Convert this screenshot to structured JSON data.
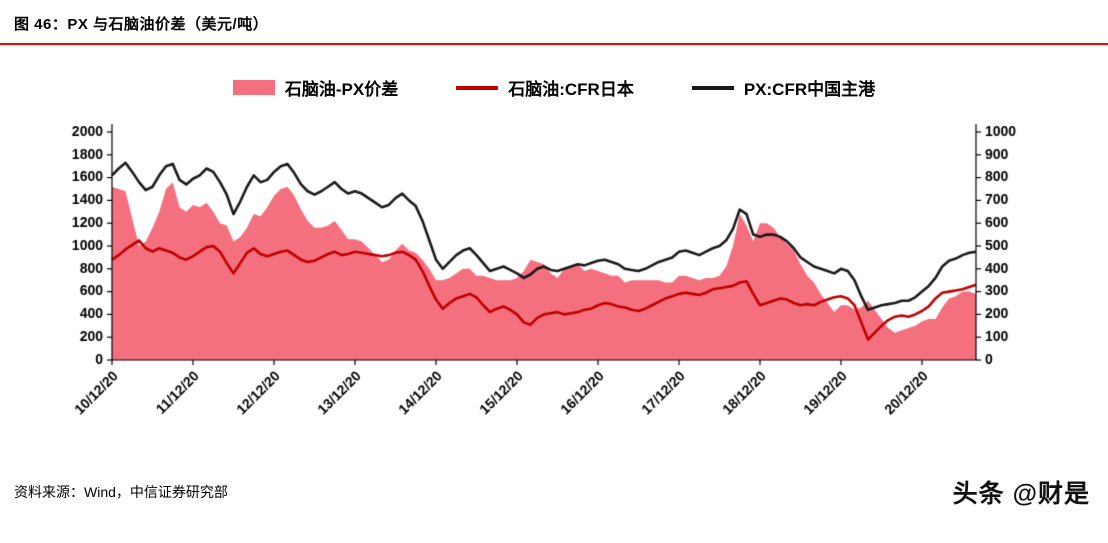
{
  "page": {
    "title": "图 46：PX 与石脑油价差（美元/吨）",
    "source": "资料来源：Wind，中信证券研究部",
    "watermark": "头条 @财是",
    "colors": {
      "accent_red": "#ff0000"
    }
  },
  "chart_data": {
    "type": "line",
    "title": "图 46：PX 与石脑油价差（美元/吨）",
    "xlabel": "",
    "ylabel": "美元/吨",
    "grid": false,
    "legend_position": "top",
    "left_axis": {
      "min": 0,
      "max": 2000,
      "step": 200
    },
    "right_axis": {
      "min": 0,
      "max": 1000,
      "step": 100
    },
    "x_tick_labels": [
      "10/12/20",
      "11/12/20",
      "12/12/20",
      "13/12/20",
      "14/12/20",
      "15/12/20",
      "16/12/20",
      "17/12/20",
      "18/12/20",
      "19/12/20",
      "20/12/20"
    ],
    "x_tick_indices": [
      0,
      12,
      24,
      36,
      48,
      60,
      72,
      84,
      96,
      108,
      120
    ],
    "series": [
      {
        "name": "石脑油-PX价差",
        "type": "area",
        "axis": "right",
        "color": "#f4707e",
        "values": [
          760,
          750,
          740,
          620,
          500,
          520,
          580,
          650,
          750,
          780,
          670,
          650,
          680,
          670,
          690,
          650,
          600,
          590,
          520,
          540,
          580,
          640,
          630,
          670,
          720,
          750,
          760,
          720,
          660,
          610,
          580,
          580,
          590,
          610,
          570,
          530,
          530,
          520,
          490,
          460,
          430,
          440,
          480,
          510,
          480,
          470,
          440,
          400,
          350,
          350,
          360,
          380,
          400,
          400,
          370,
          370,
          360,
          350,
          350,
          350,
          360,
          390,
          440,
          430,
          420,
          380,
          360,
          400,
          410,
          420,
          390,
          400,
          390,
          380,
          370,
          370,
          340,
          350,
          350,
          350,
          350,
          350,
          340,
          340,
          370,
          370,
          360,
          350,
          360,
          360,
          370,
          410,
          500,
          640,
          590,
          520,
          600,
          600,
          580,
          540,
          510,
          480,
          420,
          370,
          340,
          290,
          250,
          210,
          240,
          240,
          220,
          230,
          260,
          220,
          180,
          140,
          120,
          130,
          140,
          150,
          170,
          180,
          180,
          230,
          270,
          280,
          300,
          300,
          290
        ]
      },
      {
        "name": "石脑油:CFR日本",
        "type": "line",
        "axis": "left",
        "color": "#c00000",
        "values": [
          880,
          920,
          970,
          1010,
          1050,
          980,
          950,
          980,
          960,
          940,
          900,
          880,
          910,
          950,
          990,
          1000,
          950,
          850,
          760,
          850,
          940,
          980,
          930,
          910,
          930,
          950,
          960,
          920,
          880,
          860,
          870,
          900,
          930,
          950,
          920,
          930,
          950,
          940,
          930,
          920,
          910,
          920,
          940,
          950,
          920,
          880,
          780,
          650,
          530,
          450,
          500,
          540,
          560,
          580,
          550,
          480,
          420,
          450,
          470,
          440,
          400,
          330,
          310,
          370,
          400,
          410,
          420,
          400,
          410,
          420,
          440,
          450,
          480,
          500,
          490,
          470,
          460,
          440,
          430,
          450,
          480,
          510,
          540,
          560,
          580,
          590,
          580,
          570,
          590,
          620,
          630,
          640,
          650,
          680,
          690,
          580,
          480,
          500,
          520,
          540,
          530,
          500,
          480,
          490,
          480,
          510,
          530,
          550,
          560,
          540,
          480,
          330,
          180,
          240,
          300,
          350,
          380,
          390,
          380,
          400,
          430,
          470,
          540,
          590,
          600,
          610,
          620,
          640,
          660
        ]
      },
      {
        "name": "PX:CFR中国主港",
        "type": "line",
        "axis": "left",
        "color": "#1a1a1a",
        "values": [
          1620,
          1680,
          1730,
          1650,
          1560,
          1490,
          1520,
          1620,
          1700,
          1720,
          1580,
          1540,
          1590,
          1620,
          1680,
          1650,
          1560,
          1450,
          1280,
          1390,
          1520,
          1620,
          1560,
          1580,
          1650,
          1700,
          1720,
          1640,
          1540,
          1480,
          1450,
          1480,
          1520,
          1560,
          1500,
          1460,
          1480,
          1460,
          1420,
          1380,
          1340,
          1360,
          1420,
          1460,
          1400,
          1350,
          1220,
          1050,
          880,
          800,
          860,
          920,
          960,
          980,
          920,
          850,
          780,
          800,
          820,
          790,
          760,
          720,
          750,
          800,
          820,
          790,
          780,
          800,
          820,
          840,
          830,
          850,
          870,
          880,
          860,
          840,
          800,
          790,
          780,
          800,
          830,
          860,
          880,
          900,
          950,
          960,
          940,
          920,
          950,
          980,
          1000,
          1050,
          1150,
          1320,
          1280,
          1100,
          1080,
          1100,
          1100,
          1080,
          1040,
          980,
          900,
          860,
          820,
          800,
          780,
          760,
          800,
          780,
          700,
          560,
          440,
          460,
          480,
          490,
          500,
          520,
          520,
          550,
          600,
          650,
          720,
          820,
          870,
          890,
          920,
          940,
          950
        ]
      }
    ]
  }
}
